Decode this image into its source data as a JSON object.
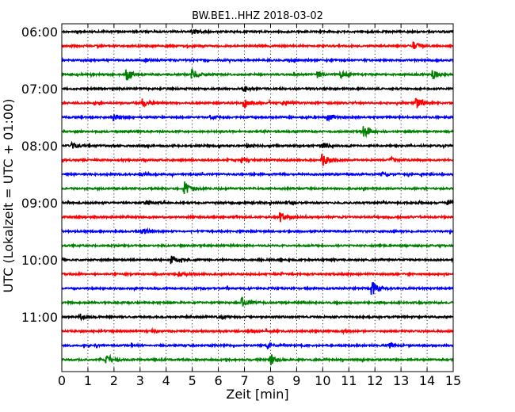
{
  "chart_data": {
    "type": "line",
    "title": "BW.BE1..HHZ 2018-03-02",
    "xlabel": "Zeit  [min]",
    "ylabel": "UTC (Lokalzeit = UTC + 01:00)",
    "xlim": [
      0,
      15
    ],
    "x_ticks": [
      "0",
      "1",
      "2",
      "3",
      "4",
      "5",
      "6",
      "7",
      "8",
      "9",
      "10",
      "11",
      "12",
      "13",
      "14",
      "15"
    ],
    "y_ticks": [
      "06:00",
      "07:00",
      "08:00",
      "09:00",
      "10:00",
      "11:00"
    ],
    "grid": true,
    "colors": [
      "#000000",
      "#ff0000",
      "#0000ff",
      "#008000"
    ],
    "traces": [
      {
        "start": "06:00",
        "events": [
          [
            5.0,
            0.3
          ]
        ]
      },
      {
        "start": "06:15",
        "events": [
          [
            13.5,
            0.5
          ]
        ]
      },
      {
        "start": "06:30",
        "events": [
          [
            3.2,
            0.2
          ],
          [
            8.9,
            0.2
          ]
        ]
      },
      {
        "start": "06:45",
        "events": [
          [
            2.5,
            0.8
          ],
          [
            5.0,
            0.7
          ],
          [
            9.8,
            0.4
          ],
          [
            10.7,
            0.4
          ],
          [
            14.2,
            0.7
          ]
        ]
      },
      {
        "start": "07:00",
        "events": [
          [
            7.0,
            0.3
          ]
        ]
      },
      {
        "start": "07:15",
        "events": [
          [
            3.1,
            0.5
          ],
          [
            7.0,
            0.7
          ],
          [
            8.5,
            0.3
          ],
          [
            13.6,
            0.9
          ]
        ]
      },
      {
        "start": "07:30",
        "events": [
          [
            2.0,
            0.5
          ],
          [
            5.7,
            0.3
          ],
          [
            10.2,
            0.5
          ]
        ]
      },
      {
        "start": "07:45",
        "events": [
          [
            11.6,
            0.8
          ]
        ]
      },
      {
        "start": "08:00",
        "events": [
          [
            0.4,
            0.4
          ],
          [
            7.1,
            0.3
          ],
          [
            10.0,
            0.4
          ]
        ]
      },
      {
        "start": "08:15",
        "events": [
          [
            6.9,
            0.3
          ],
          [
            10.0,
            0.8
          ],
          [
            12.6,
            0.3
          ]
        ]
      },
      {
        "start": "08:30",
        "events": [
          [
            3.0,
            0.2
          ],
          [
            12.3,
            0.2
          ]
        ]
      },
      {
        "start": "08:45",
        "events": [
          [
            4.7,
            0.9
          ]
        ]
      },
      {
        "start": "09:00",
        "events": [
          [
            3.2,
            0.4
          ],
          [
            8.6,
            0.2
          ],
          [
            14.8,
            0.4
          ]
        ]
      },
      {
        "start": "09:15",
        "events": [
          [
            8.4,
            0.6
          ]
        ]
      },
      {
        "start": "09:30",
        "events": [
          [
            3.1,
            0.4
          ]
        ]
      },
      {
        "start": "09:45",
        "events": []
      },
      {
        "start": "10:00",
        "events": [
          [
            4.2,
            0.5
          ]
        ]
      },
      {
        "start": "10:15",
        "events": [
          [
            4.5,
            0.3
          ]
        ]
      },
      {
        "start": "10:30",
        "events": [
          [
            11.9,
            1.0
          ]
        ]
      },
      {
        "start": "10:45",
        "events": [
          [
            6.9,
            0.7
          ]
        ]
      },
      {
        "start": "11:00",
        "events": [
          [
            0.7,
            0.4
          ],
          [
            6.0,
            0.2
          ]
        ]
      },
      {
        "start": "11:15",
        "events": [
          [
            3.5,
            0.2
          ],
          [
            7.3,
            0.2
          ],
          [
            10.8,
            0.2
          ]
        ]
      },
      {
        "start": "11:30",
        "events": [
          [
            7.9,
            0.3
          ],
          [
            12.6,
            0.3
          ]
        ]
      },
      {
        "start": "11:45",
        "events": [
          [
            1.7,
            0.8
          ],
          [
            8.0,
            0.8
          ]
        ]
      }
    ]
  }
}
